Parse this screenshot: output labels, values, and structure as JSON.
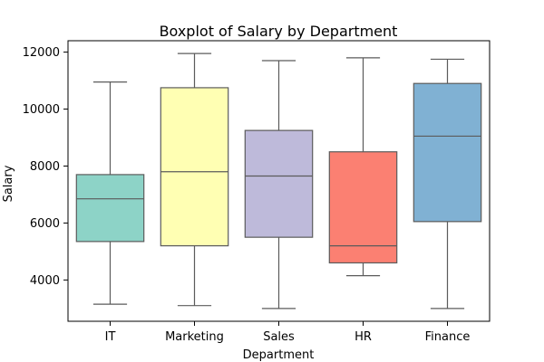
{
  "chart_data": {
    "type": "boxplot",
    "title": "Boxplot of Salary by Department",
    "xlabel": "Department",
    "ylabel": "Salary",
    "ylim": [
      2550,
      12400
    ],
    "yticks": [
      4000,
      6000,
      8000,
      10000,
      12000
    ],
    "categories": [
      "IT",
      "Marketing",
      "Sales",
      "HR",
      "Finance"
    ],
    "boxes": [
      {
        "category": "IT",
        "whisker_low": 3150,
        "q1": 5350,
        "median": 6850,
        "q3": 7700,
        "whisker_high": 10950,
        "color": "#8dd3c7"
      },
      {
        "category": "Marketing",
        "whisker_low": 3100,
        "q1": 5200,
        "median": 7800,
        "q3": 10750,
        "whisker_high": 11950,
        "color": "#ffffb3"
      },
      {
        "category": "Sales",
        "whisker_low": 3000,
        "q1": 5500,
        "median": 7650,
        "q3": 9250,
        "whisker_high": 11700,
        "color": "#bebada"
      },
      {
        "category": "HR",
        "whisker_low": 4150,
        "q1": 4600,
        "median": 5200,
        "q3": 8500,
        "whisker_high": 11800,
        "color": "#fb8072"
      },
      {
        "category": "Finance",
        "whisker_low": 3000,
        "q1": 6050,
        "median": 9050,
        "q3": 10900,
        "whisker_high": 11750,
        "color": "#80b1d3"
      }
    ],
    "grid": false,
    "legend": "none"
  }
}
